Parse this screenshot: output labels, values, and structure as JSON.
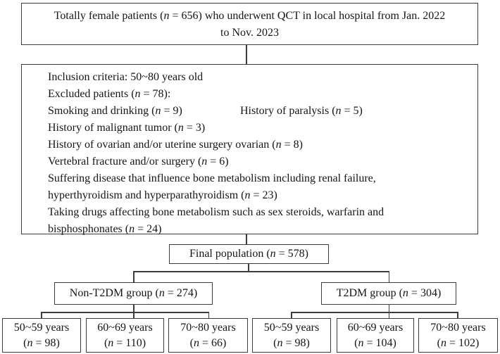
{
  "figure": {
    "top_box": {
      "line1": "Totally female patients (n = 656) who underwent QCT in local hospital from Jan. 2022",
      "line2": "to Nov. 2023"
    },
    "criteria_box": {
      "line1": "Inclusion criteria: 50~80 years old",
      "line2": "Excluded patients (n = 78):",
      "line3a": "Smoking and drinking (n = 9)",
      "line3b": "History of paralysis (n = 5)",
      "line4": "History of malignant tumor (n = 3)",
      "line5": "History of ovarian and/or uterine surgery ovarian (n = 8)",
      "line6": "Vertebral fracture and/or surgery (n = 6)",
      "line7": "Suffering disease that influence bone metabolism including renal failure,",
      "line8": "hyperthyroidism and hyperparathyroidism (n = 23)",
      "line9": "Taking drugs affecting bone metabolism such as sex steroids, warfarin and",
      "line10": "bisphosphonates (n = 24)"
    },
    "final_box": {
      "label": "Final population (n = 578)"
    },
    "non_t2dm_box": {
      "label": "Non-T2DM group (n = 274)"
    },
    "t2dm_box": {
      "label": "T2DM group (n = 304)"
    },
    "age_boxes": [
      {
        "line1": "50~59 years",
        "line2": "(n = 98)"
      },
      {
        "line1": "60~69 years",
        "line2": "(n = 110)"
      },
      {
        "line1": "70~80 years",
        "line2": "(n = 66)"
      },
      {
        "line1": "50~59 years",
        "line2": "(n = 98)"
      },
      {
        "line1": "60~69 years",
        "line2": "(n = 104)"
      },
      {
        "line1": "70~80 years",
        "line2": "(n = 102)"
      }
    ],
    "colors": {
      "border": "#3d3d3d",
      "text": "#151515",
      "background": "#ffffff"
    }
  }
}
